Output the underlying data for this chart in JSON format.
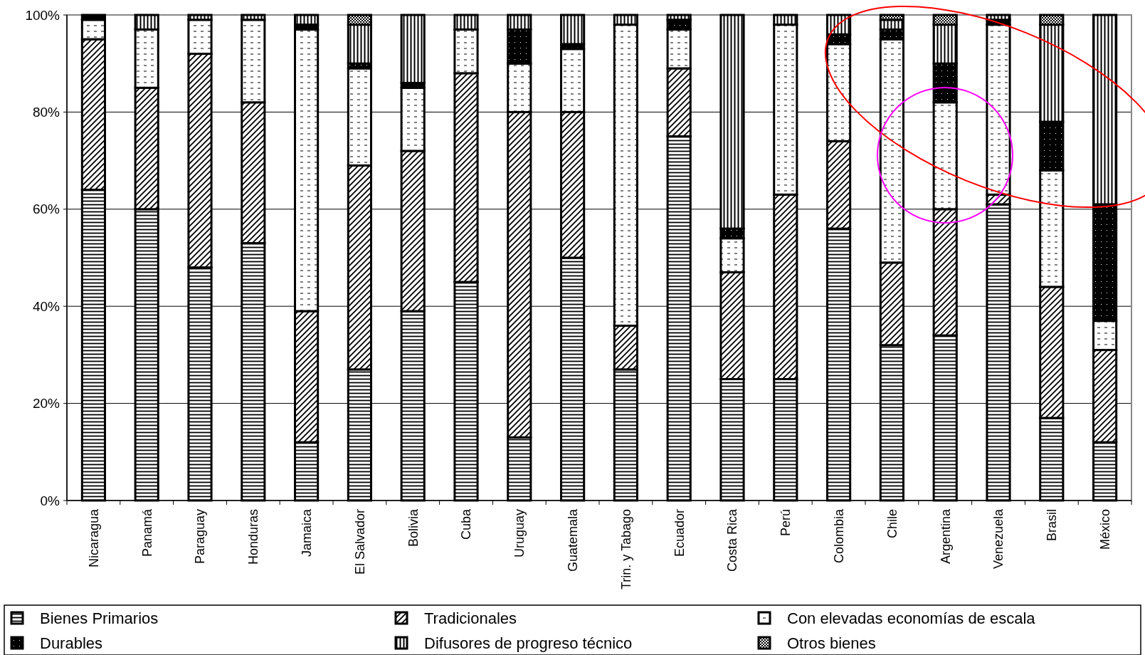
{
  "chart_data": {
    "type": "bar",
    "stacked": true,
    "categories": [
      "Nicaragua",
      "Panamá",
      "Paraguay",
      "Honduras",
      "Jamaica",
      "El Salvador",
      "Bolivia",
      "Cuba",
      "Uruguay",
      "Guatemala",
      "Trin. y Tabago",
      "Ecuador",
      "Costa Rica",
      "Perú",
      "Colombia",
      "Chile",
      "Argentina",
      "Venezuela",
      "Brasil",
      "México"
    ],
    "series": [
      {
        "name": "Bienes Primarios",
        "color": "#000000",
        "values": [
          64,
          60,
          48,
          53,
          12,
          27,
          39,
          45,
          13,
          50,
          27,
          75,
          25,
          25,
          56,
          32,
          34,
          61,
          17,
          12
        ]
      },
      {
        "name": "Tradicionales",
        "color": "#000000",
        "values": [
          31,
          25,
          44,
          29,
          27,
          42,
          33,
          43,
          67,
          30,
          9,
          14,
          22,
          38,
          18,
          17,
          26,
          2,
          27,
          19
        ]
      },
      {
        "name": "Con elevadas economías de escala",
        "color": "#000000",
        "values": [
          4,
          12,
          7,
          17,
          58,
          20,
          13,
          9,
          10,
          13,
          62,
          8,
          7,
          35,
          20,
          46,
          22,
          35,
          24,
          6
        ]
      },
      {
        "name": "Durables",
        "color": "#000000",
        "values": [
          1,
          0,
          0,
          0,
          1,
          1,
          1,
          0,
          7,
          1,
          0,
          2,
          2,
          0,
          2,
          2,
          8,
          1,
          10,
          24
        ]
      },
      {
        "name": "Difusores de progreso técnico",
        "color": "#000000",
        "values": [
          0,
          3,
          1,
          1,
          2,
          8,
          14,
          3,
          3,
          6,
          2,
          1,
          44,
          2,
          4,
          2,
          8,
          1,
          20,
          39
        ]
      },
      {
        "name": "Otros bienes",
        "color": "#000000",
        "values": [
          0,
          0,
          0,
          0,
          0,
          2,
          0,
          0,
          0,
          0,
          0,
          0,
          0,
          0,
          0,
          1,
          2,
          0,
          2,
          0
        ]
      }
    ],
    "ylim": [
      0,
      100
    ],
    "yticks": [
      {
        "value": 0,
        "label": "0%"
      },
      {
        "value": 20,
        "label": "20%"
      },
      {
        "value": 40,
        "label": "40%"
      },
      {
        "value": 60,
        "label": "60%"
      },
      {
        "value": 80,
        "label": "80%"
      },
      {
        "value": 100,
        "label": "100%"
      }
    ],
    "grid": "y",
    "legend": "bottom"
  }
}
